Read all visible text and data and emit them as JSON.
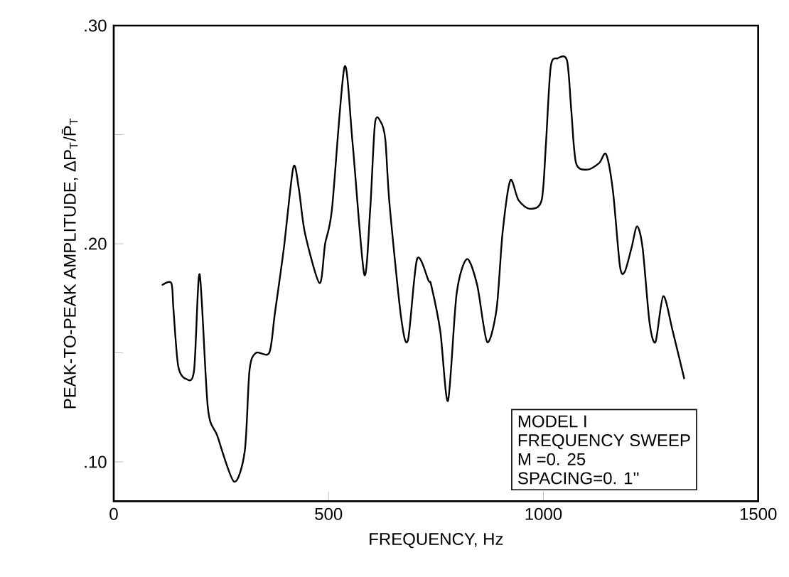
{
  "chart_data": {
    "type": "line",
    "xlabel": "FREQUENCY, Hz",
    "ylabel": "PEAK-TO-PEAK AMPLITUDE, ΔP$_{T}$/P̄$_{T}$",
    "annotations": [
      "MODEL  I",
      "FREQUENCY  SWEEP",
      "M =0. 25",
      "SPACING=0. 1''"
    ],
    "xlim": [
      0,
      1500
    ],
    "xticks": [
      0,
      500,
      1000,
      1500
    ],
    "ylim": [
      0.082,
      0.3
    ],
    "yticks": [
      {
        "value": 0.1,
        "label": ".10"
      },
      {
        "value": 0.15,
        "label": null
      },
      {
        "value": 0.2,
        "label": ".20"
      },
      {
        "value": 0.25,
        "label": null
      },
      {
        "value": 0.3,
        "label": ".30"
      }
    ],
    "grid": false,
    "marker": "none",
    "line_style": "solid",
    "series": [
      {
        "color": "#000000",
        "x": [
          112,
          134,
          139,
          150,
          169,
          187,
          200,
          219,
          241,
          280,
          305,
          316,
          331,
          362,
          375,
          396,
          418,
          431,
          445,
          479,
          492,
          508,
          537,
          556,
          583,
          597,
          608,
          621,
          632,
          642,
          669,
          685,
          706,
          733,
          739,
          760,
          778,
          798,
          822,
          846,
          869,
          891,
          905,
          923,
          942,
          969,
          996,
          1006,
          1017,
          1033,
          1055,
          1065,
          1076,
          1103,
          1130,
          1146,
          1162,
          1178,
          1189,
          1205,
          1218,
          1231,
          1247,
          1261,
          1279,
          1301,
          1328
        ],
        "values": [
          0.181,
          0.182,
          0.17,
          0.144,
          0.138,
          0.142,
          0.186,
          0.125,
          0.112,
          0.091,
          0.105,
          0.142,
          0.15,
          0.15,
          0.168,
          0.198,
          0.235,
          0.225,
          0.205,
          0.182,
          0.2,
          0.216,
          0.281,
          0.246,
          0.186,
          0.216,
          0.255,
          0.256,
          0.248,
          0.218,
          0.166,
          0.156,
          0.193,
          0.183,
          0.181,
          0.16,
          0.128,
          0.177,
          0.193,
          0.181,
          0.155,
          0.17,
          0.205,
          0.229,
          0.22,
          0.216,
          0.22,
          0.246,
          0.281,
          0.285,
          0.284,
          0.261,
          0.237,
          0.234,
          0.237,
          0.241,
          0.224,
          0.19,
          0.187,
          0.198,
          0.208,
          0.198,
          0.164,
          0.155,
          0.176,
          0.16,
          0.138
        ]
      }
    ]
  }
}
